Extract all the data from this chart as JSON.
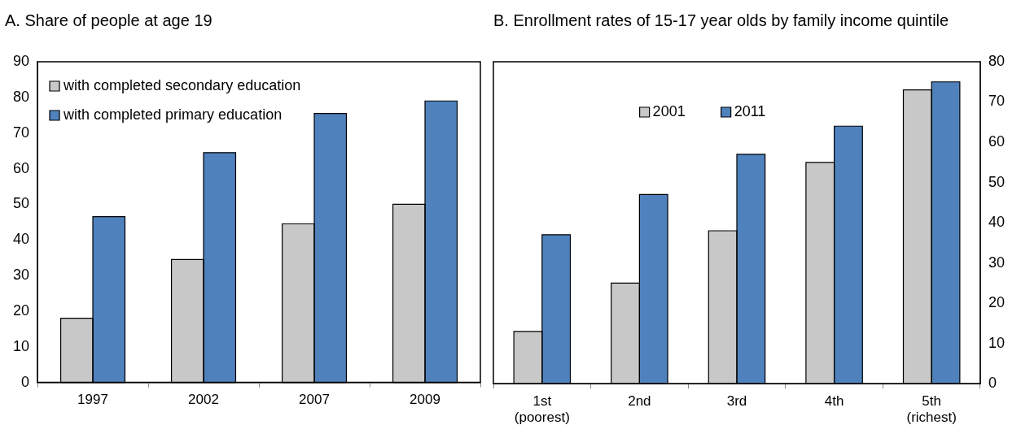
{
  "chart_data": [
    {
      "type": "bar",
      "title": "A. Share of people at age 19",
      "categories": [
        "1997",
        "2002",
        "2007",
        "2009"
      ],
      "series": [
        {
          "name": "with completed secondary education",
          "color": "#c8c8c8",
          "values": [
            18,
            34.5,
            44.5,
            50
          ]
        },
        {
          "name": "with completed primary education",
          "color": "#4f81bd",
          "values": [
            46.5,
            64.5,
            75.5,
            79
          ]
        }
      ],
      "ylim": [
        0,
        90
      ],
      "yticks": [
        0,
        10,
        20,
        30,
        40,
        50,
        60,
        70,
        80,
        90
      ],
      "grid": false,
      "legend": "top left"
    },
    {
      "type": "bar",
      "title": "B. Enrollment rates of 15-17 year olds by family income quintile",
      "categories": [
        "1st (poorest)",
        "2nd",
        "3rd",
        "4th",
        "5th (richest)"
      ],
      "series": [
        {
          "name": "2001",
          "color": "#c8c8c8",
          "values": [
            13,
            25,
            38,
            55,
            73
          ],
          "axis": "y2"
        },
        {
          "name": "2011",
          "color": "#4f81bd",
          "values": [
            37,
            47,
            57,
            64,
            75
          ],
          "axis": "y2"
        }
      ],
      "y2lim": [
        0,
        80
      ],
      "y2ticks": [
        0,
        10,
        20,
        30,
        40,
        50,
        60,
        70,
        80
      ],
      "grid": false,
      "legend": "top"
    }
  ]
}
